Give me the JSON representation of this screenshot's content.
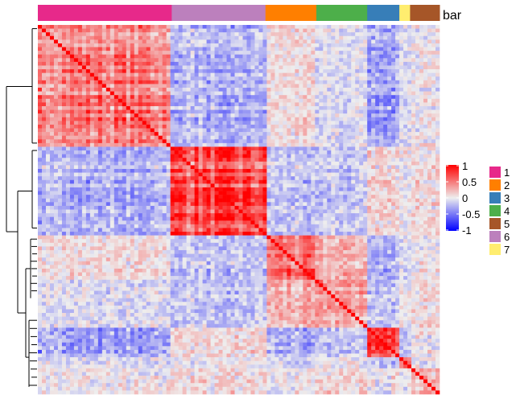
{
  "chart_data": {
    "type": "heatmap",
    "annotation_title": "bar",
    "cluster_order": [
      "1",
      "6",
      "2",
      "4",
      "3",
      "7",
      "5"
    ],
    "cluster_sizes": [
      50,
      35,
      19,
      19,
      12,
      4,
      11
    ],
    "cluster_colors": {
      "1": "#E7298A",
      "2": "#FF7F00",
      "3": "#377EB8",
      "4": "#4DAF4A",
      "5": "#A65628",
      "6": "#BC80BD",
      "7": "#FFED6F"
    },
    "block_mean_correlation": [
      [
        0.6,
        -0.3,
        0.1,
        -0.1,
        -0.4,
        -0.1,
        0.0
      ],
      [
        -0.3,
        0.8,
        -0.2,
        -0.2,
        0.1,
        0.0,
        0.1
      ],
      [
        0.1,
        -0.2,
        0.6,
        0.3,
        -0.3,
        -0.1,
        0.0
      ],
      [
        -0.1,
        -0.2,
        0.3,
        0.4,
        -0.2,
        0.0,
        0.1
      ],
      [
        -0.4,
        0.1,
        -0.3,
        -0.2,
        0.9,
        -0.3,
        0.0
      ],
      [
        -0.1,
        0.0,
        -0.1,
        0.0,
        -0.3,
        0.9,
        0.0
      ],
      [
        0.0,
        0.1,
        0.0,
        0.1,
        0.0,
        0.0,
        0.3
      ]
    ],
    "color_scale": {
      "min": -1,
      "mid": 0,
      "max": 1,
      "min_color": "#0000FF",
      "mid_color": "#EEEEEE",
      "max_color": "#FF0000"
    },
    "color_legend_ticks": [
      "1",
      "0.5",
      "0",
      "-0.5",
      "-1"
    ],
    "cluster_legend_labels": [
      "1",
      "2",
      "3",
      "4",
      "5",
      "6",
      "7"
    ],
    "row_dendrogram": "left"
  }
}
